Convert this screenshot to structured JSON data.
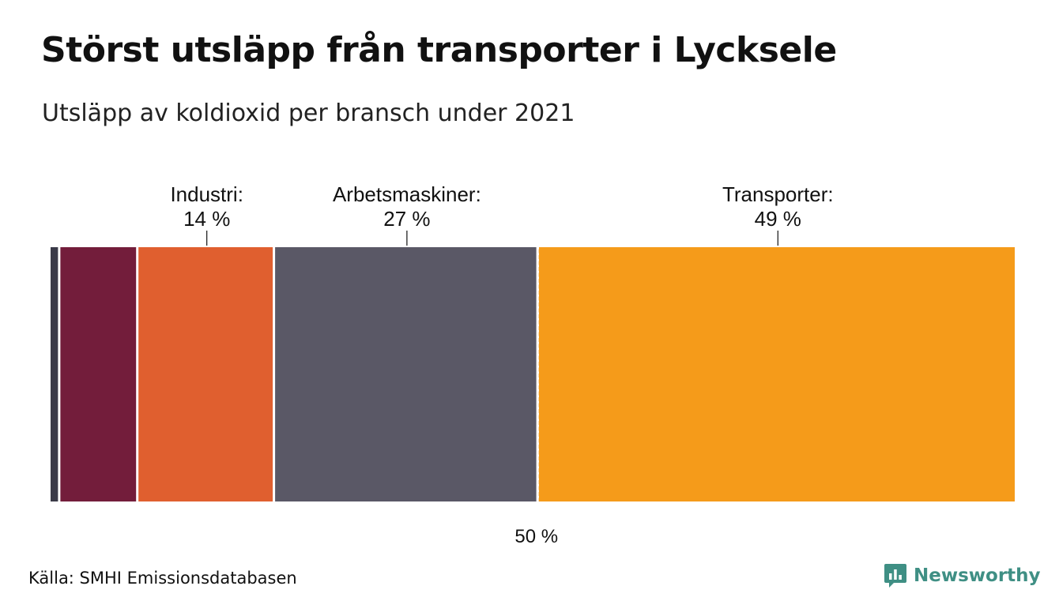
{
  "title": "Störst utsläpp från transporter i Lycksele",
  "subtitle": "Utsläpp av koldioxid per bransch under 2021",
  "source": "Källa: SMHI Emissionsdatabasen",
  "brand": {
    "name": "Newsworthy",
    "color": "#3f8f84"
  },
  "chart_data": {
    "type": "bar",
    "orientation": "stacked-100-horizontal",
    "unit": "%",
    "reference_line": {
      "value": 50,
      "label": "50 %"
    },
    "segments": [
      {
        "name": "",
        "value": 1,
        "color": "#3a3a48",
        "labeled": false
      },
      {
        "name": "",
        "value": 8,
        "color": "#731d3b",
        "labeled": false
      },
      {
        "name": "Industri",
        "value": 14,
        "label_line1": "Industri:",
        "label_line2": "14 %",
        "color": "#e05f2f",
        "labeled": true
      },
      {
        "name": "Arbetsmaskiner",
        "value": 27,
        "label_line1": "Arbetsmaskiner:",
        "label_line2": "27 %",
        "color": "#5a5866",
        "labeled": true
      },
      {
        "name": "Transporter",
        "value": 49,
        "label_line1": "Transporter:",
        "label_line2": "49 %",
        "color": "#f59b1a",
        "labeled": true
      }
    ]
  }
}
